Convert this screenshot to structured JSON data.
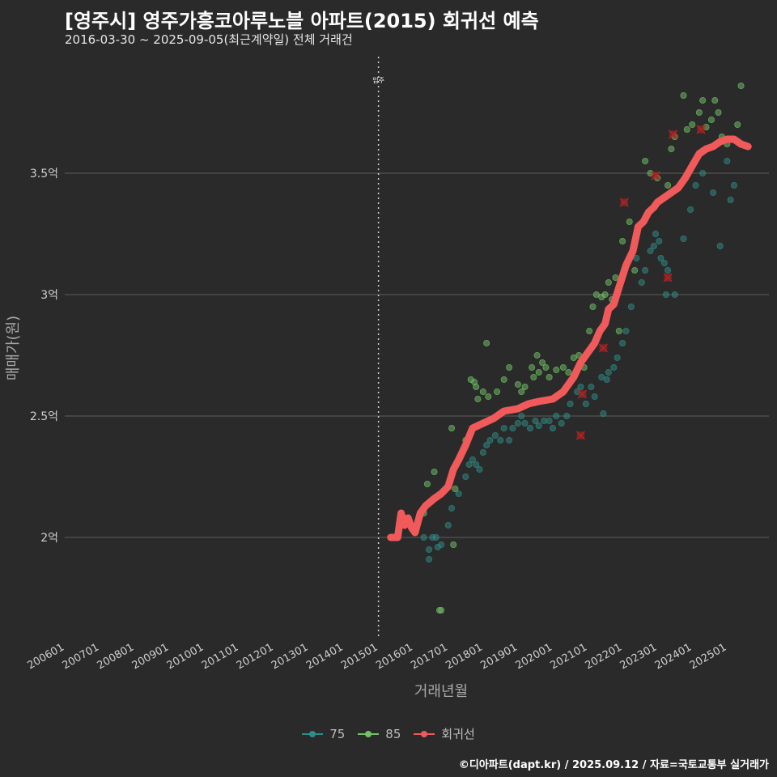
{
  "header": {
    "title": "[영주시] 영주가흥코아루노블 아파트(2015) 회귀선 예측",
    "subtitle": "2016-03-30 ~ 2025-09-05(최근계약일) 전체 거래건"
  },
  "footer": {
    "credit": "©디아파트(dapt.kr) / 2025.09.12 / 자료=국토교통부 실거래가"
  },
  "colors": {
    "background": "#2a2a2b",
    "series75": "#2f8c86",
    "series85": "#72c265",
    "regression": "#f05a5a",
    "outlier": "#b22222",
    "grid": "#5e5e5e"
  },
  "legend": [
    {
      "label": "75",
      "color": "#2f8c86"
    },
    {
      "label": "85",
      "color": "#72c265"
    },
    {
      "label": "회귀선",
      "color": "#f05a5a"
    }
  ],
  "chart_data": {
    "type": "scatter",
    "xlabel": "거래년월",
    "ylabel": "매매가(원)",
    "xlim": [
      2006.0,
      2026.2
    ],
    "ylim": [
      1.58,
      3.98
    ],
    "x_ticks": [
      {
        "value": 2006.0,
        "label": "200601"
      },
      {
        "value": 2007.0,
        "label": "200701"
      },
      {
        "value": 2008.0,
        "label": "200801"
      },
      {
        "value": 2009.0,
        "label": "200901"
      },
      {
        "value": 2010.0,
        "label": "201001"
      },
      {
        "value": 2011.0,
        "label": "201101"
      },
      {
        "value": 2012.0,
        "label": "201201"
      },
      {
        "value": 2013.0,
        "label": "201301"
      },
      {
        "value": 2014.0,
        "label": "201401"
      },
      {
        "value": 2015.0,
        "label": "201501"
      },
      {
        "value": 2016.0,
        "label": "201601"
      },
      {
        "value": 2017.0,
        "label": "201701"
      },
      {
        "value": 2018.0,
        "label": "201801"
      },
      {
        "value": 2019.0,
        "label": "201901"
      },
      {
        "value": 2020.0,
        "label": "202001"
      },
      {
        "value": 2021.0,
        "label": "202101"
      },
      {
        "value": 2022.0,
        "label": "202201"
      },
      {
        "value": 2023.0,
        "label": "202301"
      },
      {
        "value": 2024.0,
        "label": "202401"
      },
      {
        "value": 2025.0,
        "label": "202501"
      }
    ],
    "y_ticks": [
      {
        "value": 2.0,
        "label": "2억"
      },
      {
        "value": 2.5,
        "label": "2.5억"
      },
      {
        "value": 3.0,
        "label": "3억"
      },
      {
        "value": 3.5,
        "label": "3.5억"
      }
    ],
    "annotation": {
      "x": 2015.0,
      "label": "입주"
    },
    "series": [
      {
        "name": "75",
        "points": [
          [
            2016.3,
            2.0
          ],
          [
            2016.45,
            1.95
          ],
          [
            2016.45,
            1.91
          ],
          [
            2016.55,
            2.0
          ],
          [
            2016.65,
            2.0
          ],
          [
            2016.7,
            1.96
          ],
          [
            2016.8,
            1.97
          ],
          [
            2017.0,
            2.05
          ],
          [
            2017.1,
            2.12
          ],
          [
            2017.3,
            2.18
          ],
          [
            2017.5,
            2.25
          ],
          [
            2017.6,
            2.3
          ],
          [
            2017.7,
            2.32
          ],
          [
            2017.8,
            2.3
          ],
          [
            2017.9,
            2.28
          ],
          [
            2018.0,
            2.35
          ],
          [
            2018.1,
            2.38
          ],
          [
            2018.2,
            2.4
          ],
          [
            2018.35,
            2.42
          ],
          [
            2018.5,
            2.4
          ],
          [
            2018.6,
            2.45
          ],
          [
            2018.75,
            2.4
          ],
          [
            2018.85,
            2.45
          ],
          [
            2019.0,
            2.47
          ],
          [
            2019.1,
            2.5
          ],
          [
            2019.2,
            2.47
          ],
          [
            2019.35,
            2.45
          ],
          [
            2019.5,
            2.48
          ],
          [
            2019.6,
            2.46
          ],
          [
            2019.75,
            2.48
          ],
          [
            2019.9,
            2.48
          ],
          [
            2020.0,
            2.45
          ],
          [
            2020.1,
            2.5
          ],
          [
            2020.25,
            2.47
          ],
          [
            2020.4,
            2.5
          ],
          [
            2020.5,
            2.55
          ],
          [
            2020.7,
            2.6
          ],
          [
            2020.8,
            2.62
          ],
          [
            2020.95,
            2.55
          ],
          [
            2021.1,
            2.62
          ],
          [
            2021.2,
            2.58
          ],
          [
            2021.4,
            2.66
          ],
          [
            2021.45,
            2.51
          ],
          [
            2021.55,
            2.65
          ],
          [
            2021.6,
            2.68
          ],
          [
            2021.75,
            2.7
          ],
          [
            2021.85,
            2.74
          ],
          [
            2022.0,
            2.8
          ],
          [
            2022.1,
            2.85
          ],
          [
            2022.25,
            2.95
          ],
          [
            2022.4,
            3.15
          ],
          [
            2022.55,
            3.05
          ],
          [
            2022.65,
            3.1
          ],
          [
            2022.8,
            3.18
          ],
          [
            2022.9,
            3.2
          ],
          [
            2022.95,
            3.25
          ],
          [
            2023.05,
            3.22
          ],
          [
            2023.1,
            3.15
          ],
          [
            2023.2,
            3.13
          ],
          [
            2023.25,
            3.0
          ],
          [
            2023.3,
            3.1
          ],
          [
            2023.5,
            3.0
          ],
          [
            2023.75,
            3.23
          ],
          [
            2023.95,
            3.35
          ],
          [
            2024.1,
            3.45
          ],
          [
            2024.3,
            3.5
          ],
          [
            2024.6,
            3.42
          ],
          [
            2024.8,
            3.2
          ],
          [
            2025.0,
            3.55
          ],
          [
            2025.1,
            3.39
          ],
          [
            2025.2,
            3.45
          ]
        ]
      },
      {
        "name": "85",
        "points": [
          [
            2016.3,
            2.1
          ],
          [
            2016.4,
            2.22
          ],
          [
            2016.6,
            2.27
          ],
          [
            2016.75,
            1.7
          ],
          [
            2016.8,
            1.7
          ],
          [
            2017.1,
            2.45
          ],
          [
            2017.2,
            2.2
          ],
          [
            2017.15,
            1.97
          ],
          [
            2017.5,
            2.4
          ],
          [
            2017.65,
            2.65
          ],
          [
            2017.75,
            2.64
          ],
          [
            2017.8,
            2.62
          ],
          [
            2017.85,
            2.57
          ],
          [
            2018.0,
            2.6
          ],
          [
            2018.1,
            2.8
          ],
          [
            2018.15,
            2.58
          ],
          [
            2018.4,
            2.6
          ],
          [
            2018.6,
            2.65
          ],
          [
            2018.75,
            2.7
          ],
          [
            2019.0,
            2.63
          ],
          [
            2019.1,
            2.6
          ],
          [
            2019.2,
            2.62
          ],
          [
            2019.4,
            2.7
          ],
          [
            2019.45,
            2.66
          ],
          [
            2019.55,
            2.75
          ],
          [
            2019.6,
            2.68
          ],
          [
            2019.7,
            2.72
          ],
          [
            2019.8,
            2.7
          ],
          [
            2019.9,
            2.66
          ],
          [
            2020.1,
            2.69
          ],
          [
            2020.3,
            2.7
          ],
          [
            2020.45,
            2.68
          ],
          [
            2020.6,
            2.74
          ],
          [
            2020.75,
            2.75
          ],
          [
            2020.9,
            2.7
          ],
          [
            2021.05,
            2.85
          ],
          [
            2021.15,
            2.95
          ],
          [
            2021.25,
            3.0
          ],
          [
            2021.4,
            2.99
          ],
          [
            2021.5,
            3.0
          ],
          [
            2021.6,
            3.05
          ],
          [
            2021.7,
            2.98
          ],
          [
            2021.8,
            3.07
          ],
          [
            2021.9,
            2.85
          ],
          [
            2022.0,
            3.22
          ],
          [
            2022.2,
            3.3
          ],
          [
            2022.35,
            3.1
          ],
          [
            2022.65,
            3.55
          ],
          [
            2022.8,
            3.5
          ],
          [
            2023.0,
            3.48
          ],
          [
            2023.2,
            3.4
          ],
          [
            2023.3,
            3.45
          ],
          [
            2023.4,
            3.6
          ],
          [
            2023.5,
            3.65
          ],
          [
            2023.75,
            3.82
          ],
          [
            2023.85,
            3.68
          ],
          [
            2024.0,
            3.7
          ],
          [
            2024.2,
            3.75
          ],
          [
            2024.3,
            3.8
          ],
          [
            2024.4,
            3.69
          ],
          [
            2024.55,
            3.72
          ],
          [
            2024.65,
            3.8
          ],
          [
            2024.75,
            3.75
          ],
          [
            2024.85,
            3.65
          ],
          [
            2025.0,
            3.62
          ],
          [
            2025.3,
            3.7
          ],
          [
            2025.4,
            3.86
          ]
        ]
      },
      {
        "name": "회귀선",
        "points": [
          [
            2015.35,
            2.0
          ],
          [
            2015.55,
            2.0
          ],
          [
            2015.65,
            2.1
          ],
          [
            2015.75,
            2.05
          ],
          [
            2015.85,
            2.08
          ],
          [
            2015.95,
            2.04
          ],
          [
            2016.05,
            2.02
          ],
          [
            2016.2,
            2.1
          ],
          [
            2016.35,
            2.13
          ],
          [
            2016.6,
            2.16
          ],
          [
            2016.8,
            2.18
          ],
          [
            2017.0,
            2.21
          ],
          [
            2017.15,
            2.28
          ],
          [
            2017.3,
            2.32
          ],
          [
            2017.5,
            2.38
          ],
          [
            2017.7,
            2.45
          ],
          [
            2018.0,
            2.47
          ],
          [
            2018.3,
            2.49
          ],
          [
            2018.6,
            2.52
          ],
          [
            2019.0,
            2.53
          ],
          [
            2019.3,
            2.55
          ],
          [
            2019.6,
            2.56
          ],
          [
            2020.0,
            2.57
          ],
          [
            2020.3,
            2.6
          ],
          [
            2020.6,
            2.66
          ],
          [
            2020.8,
            2.72
          ],
          [
            2021.0,
            2.76
          ],
          [
            2021.2,
            2.8
          ],
          [
            2021.35,
            2.85
          ],
          [
            2021.5,
            2.88
          ],
          [
            2021.6,
            2.94
          ],
          [
            2021.75,
            2.96
          ],
          [
            2021.9,
            3.03
          ],
          [
            2022.1,
            3.12
          ],
          [
            2022.3,
            3.18
          ],
          [
            2022.45,
            3.28
          ],
          [
            2022.6,
            3.3
          ],
          [
            2022.75,
            3.34
          ],
          [
            2022.9,
            3.36
          ],
          [
            2023.0,
            3.38
          ],
          [
            2023.2,
            3.4
          ],
          [
            2023.4,
            3.42
          ],
          [
            2023.6,
            3.44
          ],
          [
            2023.8,
            3.48
          ],
          [
            2024.0,
            3.53
          ],
          [
            2024.2,
            3.58
          ],
          [
            2024.4,
            3.6
          ],
          [
            2024.6,
            3.61
          ],
          [
            2024.8,
            3.63
          ],
          [
            2025.0,
            3.64
          ],
          [
            2025.2,
            3.64
          ],
          [
            2025.4,
            3.62
          ],
          [
            2025.6,
            3.61
          ]
        ]
      }
    ],
    "outliers": [
      [
        2020.8,
        2.42
      ],
      [
        2020.85,
        2.59
      ],
      [
        2021.45,
        2.78
      ],
      [
        2022.05,
        3.38
      ],
      [
        2022.95,
        3.49
      ],
      [
        2023.3,
        3.07
      ],
      [
        2023.45,
        3.66
      ],
      [
        2024.25,
        3.68
      ]
    ]
  }
}
